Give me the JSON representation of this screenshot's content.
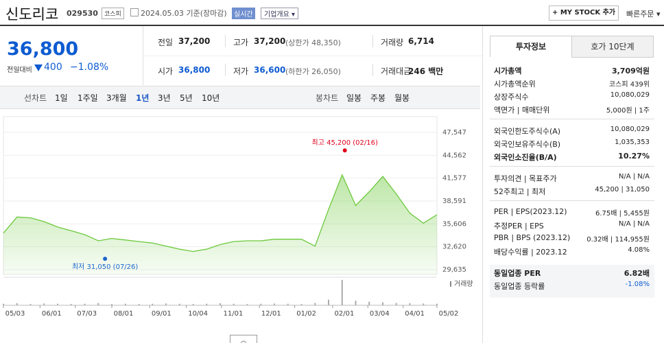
{
  "header": {
    "name": "신도리코",
    "code": "029530",
    "market": "코스피",
    "date": "2024.05.03 기준(장마감)",
    "realtime": "실시간",
    "overview": "기업개요",
    "mystock": "+ MY STOCK 추가",
    "quick_order": "빠른주문"
  },
  "price": {
    "current": "36,800",
    "change_label": "전일대비",
    "change": "400",
    "change_rate": "−1.08%"
  },
  "summary": [
    [
      {
        "label": "전일",
        "value": "37,200"
      },
      {
        "label": "고가",
        "value": "37,200",
        "note": "(상한가 48,350)"
      },
      {
        "label": "거래량",
        "value": "6,714"
      }
    ],
    [
      {
        "label": "시가",
        "value": "36,800",
        "color": "#0d5bd1"
      },
      {
        "label": "저가",
        "value": "36,600",
        "note": "(하한가 26,050)",
        "color": "#0d5bd1"
      },
      {
        "label": "거래대금",
        "value": "246 백만"
      }
    ]
  ],
  "chart_tabs": {
    "line": "선차트",
    "periods": [
      "1일",
      "1주일",
      "3개월",
      "1년",
      "3년",
      "5년",
      "10년"
    ],
    "selected": 3,
    "candle": "봉차트",
    "candle_periods": [
      "일봉",
      "주봉",
      "월봉"
    ]
  },
  "chart_data": {
    "type": "area",
    "color": "#6cc93c",
    "values": [
      34400,
      36500,
      36400,
      35900,
      35200,
      34700,
      34200,
      33400,
      33700,
      33500,
      33300,
      33100,
      32700,
      32300,
      32000,
      32300,
      32900,
      33300,
      33400,
      33400,
      33600,
      33600,
      33600,
      32700,
      37500,
      42000,
      38000,
      39800,
      41800,
      39500,
      37000,
      35700,
      36800
    ],
    "xlim": [
      0,
      32
    ],
    "ylim": [
      29635,
      47547
    ],
    "yticks": [
      {
        "value": 29635,
        "label": "29,635"
      },
      {
        "value": 32620,
        "label": "32,620"
      },
      {
        "value": 35606,
        "label": "35,606"
      },
      {
        "value": 38591,
        "label": "38,591"
      },
      {
        "value": 41577,
        "label": "41,577"
      },
      {
        "value": 44562,
        "label": "44,562"
      },
      {
        "value": 47547,
        "label": "47,547"
      }
    ],
    "xticks": [
      {
        "value": 0,
        "label": "05/03"
      },
      {
        "value": 2.7,
        "label": "06/01"
      },
      {
        "value": 5.3,
        "label": "07/03"
      },
      {
        "value": 8,
        "label": "08/01"
      },
      {
        "value": 10.8,
        "label": "09/01"
      },
      {
        "value": 13.5,
        "label": "10/04"
      },
      {
        "value": 16.1,
        "label": "11/01"
      },
      {
        "value": 18.9,
        "label": "12/01"
      },
      {
        "value": 21.5,
        "label": "01/02"
      },
      {
        "value": 24.3,
        "label": "02/01"
      },
      {
        "value": 26.9,
        "label": "03/04"
      },
      {
        "value": 29.5,
        "label": "04/01"
      },
      {
        "value": 32,
        "label": "05/02"
      }
    ],
    "high": {
      "label": "최고 45,200 (02/16)",
      "value": 45200,
      "x": 25.2,
      "color": "#e0001b"
    },
    "low": {
      "label": "최저 31,050 (07/26)",
      "value": 31050,
      "x": 7.5,
      "color": "#1a66cc"
    },
    "volume_label": "거래량",
    "volume": [
      6,
      8,
      5,
      7,
      6,
      5,
      6,
      9,
      5,
      6,
      5,
      6,
      7,
      6,
      5,
      6,
      8,
      6,
      5,
      6,
      7,
      6,
      5,
      9,
      22,
      100,
      18,
      14,
      12,
      9,
      8,
      7,
      6
    ]
  },
  "info_tabs": [
    "투자정보",
    "호가 10단계"
  ],
  "info": [
    [
      {
        "label": "시가총액",
        "value": "3,709억원",
        "bold": true
      },
      {
        "label": "시가총액순위",
        "value": "코스피 439위"
      },
      {
        "label": "상장주식수",
        "value": "10,080,029"
      },
      {
        "label": "액면가 | 매매단위",
        "value": "5,000원 | 1주"
      }
    ],
    [
      {
        "label": "외국인한도주식수(A)",
        "value": "10,080,029"
      },
      {
        "label": "외국인보유주식수(B)",
        "value": "1,035,353"
      },
      {
        "label": "외국인소진율(B/A)",
        "value": "10.27%",
        "bold": true
      }
    ],
    [
      {
        "label": "투자의견 | 목표주가",
        "value": "N/A | N/A"
      },
      {
        "label": "52주최고 | 최저",
        "value": "45,200 | 31,050"
      }
    ],
    [
      {
        "label": "PER | EPS(2023.12)",
        "value": "6.75배 | 5,455원"
      },
      {
        "label": "추정PER | EPS",
        "value": "N/A | N/A"
      },
      {
        "label": "PBR | BPS (2023.12)",
        "value": "0.32배 | 114,955원"
      },
      {
        "label": "배당수익률 | 2023.12",
        "value": "4.08%"
      }
    ],
    [
      {
        "label": "동일업종 PER",
        "value": "6.82배",
        "bold": true
      },
      {
        "label": "동일업종 등락률",
        "value": "-1.08%",
        "color": "#0d5bd1"
      }
    ]
  ]
}
